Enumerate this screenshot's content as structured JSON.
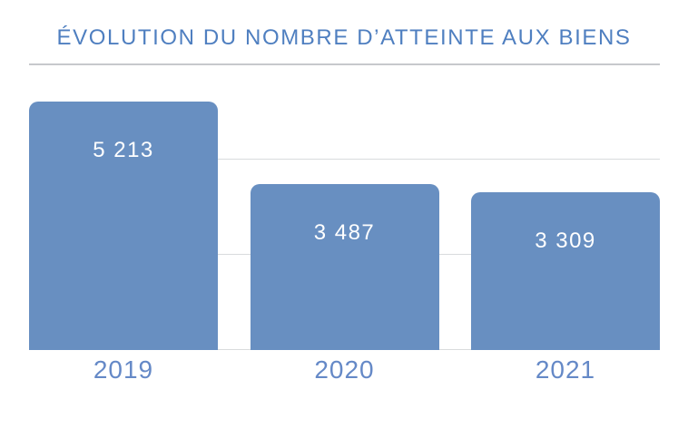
{
  "title": "ÉVOLUTION DU NOMBRE D’ATTEINTE AUX BIENS",
  "colors": {
    "background": "#ffffff",
    "bar": "#688fc1",
    "title_text": "#4f7fc0",
    "axis_label_text": "#6589c7",
    "value_label_text": "#ffffff",
    "gridline": "#d9dbdd",
    "separator": "#c7c9cc"
  },
  "chart_data": {
    "type": "bar",
    "title": "ÉVOLUTION DU NOMBRE D’ATTEINTE AUX BIENS",
    "categories": [
      "2019",
      "2020",
      "2021"
    ],
    "values": [
      5213,
      3487,
      3309
    ],
    "value_labels": [
      "5 213",
      "3 487",
      "3 309"
    ],
    "xlabel": "",
    "ylabel": "",
    "ylim": [
      0,
      6000
    ],
    "gridline_values": [
      0,
      2000,
      4000
    ],
    "grid": true,
    "legend": false,
    "data_labels_inside_bars": true
  }
}
